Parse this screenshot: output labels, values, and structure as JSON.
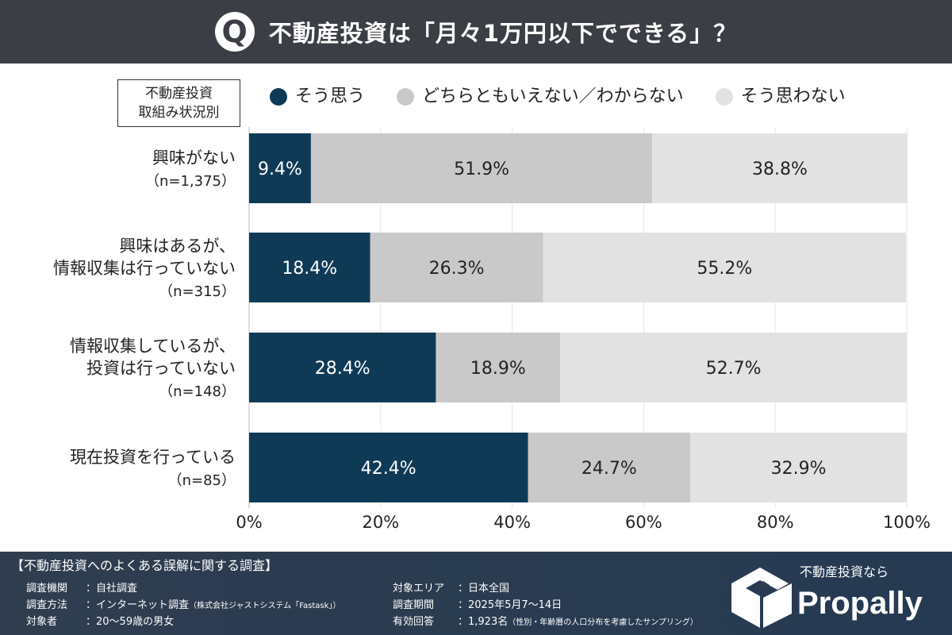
{
  "title": {
    "mark": "Q",
    "text": "不動産投資は「月々1万円以下でできる」？"
  },
  "category_header": [
    "不動産投資",
    "取組み状況別"
  ],
  "chart_data": {
    "type": "bar",
    "orientation": "horizontal",
    "stacked": true,
    "categories": [
      {
        "lines": [
          "興味がない"
        ],
        "n": "（n=1,375）"
      },
      {
        "lines": [
          "興味はあるが、",
          "情報収集は行っていない"
        ],
        "n": "（n=315）"
      },
      {
        "lines": [
          "情報収集しているが、",
          "投資は行っていない"
        ],
        "n": "（n=148）"
      },
      {
        "lines": [
          "現在投資を行っている"
        ],
        "n": "（n=85）"
      }
    ],
    "series": [
      {
        "name": "そう思う",
        "color": "#0f3a55",
        "label_color": "#ffffff",
        "values": [
          9.4,
          18.4,
          28.4,
          42.4
        ]
      },
      {
        "name": "どちらともいえない／わからない",
        "color": "#c9c9ca",
        "label_color": "#222222",
        "values": [
          51.9,
          26.3,
          18.9,
          24.7
        ]
      },
      {
        "name": "そう思わない",
        "color": "#e3e2e3",
        "label_color": "#222222",
        "values": [
          38.8,
          55.2,
          52.7,
          32.9
        ]
      }
    ],
    "xlim": [
      0,
      100
    ],
    "xticks": [
      "0%",
      "20%",
      "40%",
      "60%",
      "80%",
      "100%"
    ],
    "grid": true,
    "legend": "top"
  },
  "footer": {
    "title": "【不動産投資へのよくある誤解に関する調査】",
    "rows": [
      {
        "k": "調査機関",
        "v": "：自社調査",
        "s": ""
      },
      {
        "k": "調査方法",
        "v": "：インターネット調査",
        "s": "（株式会社ジャストシステム「Fastask」）"
      },
      {
        "k": "対象者",
        "v": "：20～59歳の男女",
        "s": ""
      },
      {
        "k": "対象エリア",
        "v": "：日本全国",
        "s": ""
      },
      {
        "k": "調査期間",
        "v": "：2025年5月7～14日",
        "s": ""
      },
      {
        "k": "有効回答",
        "v": "：1,923名",
        "s": "（性別・年齢層の人口分布を考慮したサンプリング）"
      }
    ]
  },
  "logo": {
    "sub": "不動産投資なら",
    "name": "Propally"
  }
}
